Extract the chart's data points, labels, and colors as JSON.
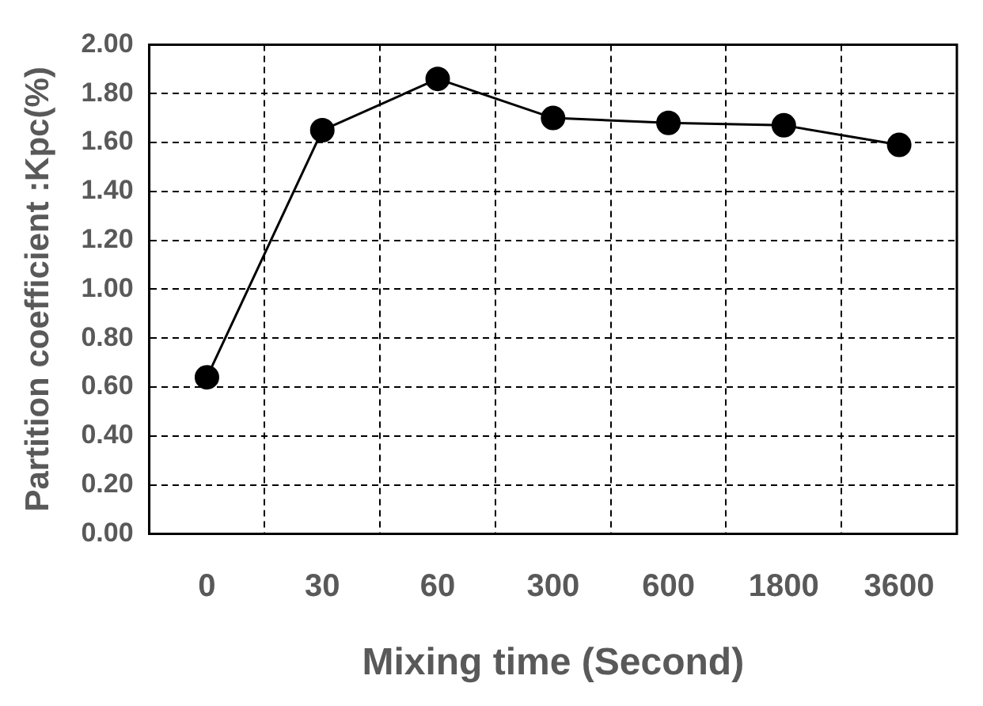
{
  "chart_data": {
    "type": "line",
    "xlabel": "Mixing time (Second)",
    "ylabel": "Partition coefficient :Kpc(%)",
    "categories": [
      "0",
      "30",
      "60",
      "300",
      "600",
      "1800",
      "3600"
    ],
    "series": [
      {
        "color": "#000000",
        "values": [
          0.64,
          1.65,
          1.86,
          1.7,
          1.68,
          1.67,
          1.59
        ]
      }
    ],
    "ylim": [
      0,
      2
    ],
    "yticks": [
      {
        "value": 0,
        "label": "0.00"
      },
      {
        "value": 0.2,
        "label": "0.20"
      },
      {
        "value": 0.4,
        "label": "0.40"
      },
      {
        "value": 0.6,
        "label": "0.60"
      },
      {
        "value": 0.8,
        "label": "0.80"
      },
      {
        "value": 1,
        "label": "1.00"
      },
      {
        "value": 1.2,
        "label": "1.20"
      },
      {
        "value": 1.4,
        "label": "1.40"
      },
      {
        "value": 1.6,
        "label": "1.60"
      },
      {
        "value": 1.8,
        "label": "1.80"
      },
      {
        "value": 2,
        "label": "2.00"
      }
    ],
    "grid": true,
    "marker": "circle",
    "line_style": "solid",
    "legend": false
  }
}
